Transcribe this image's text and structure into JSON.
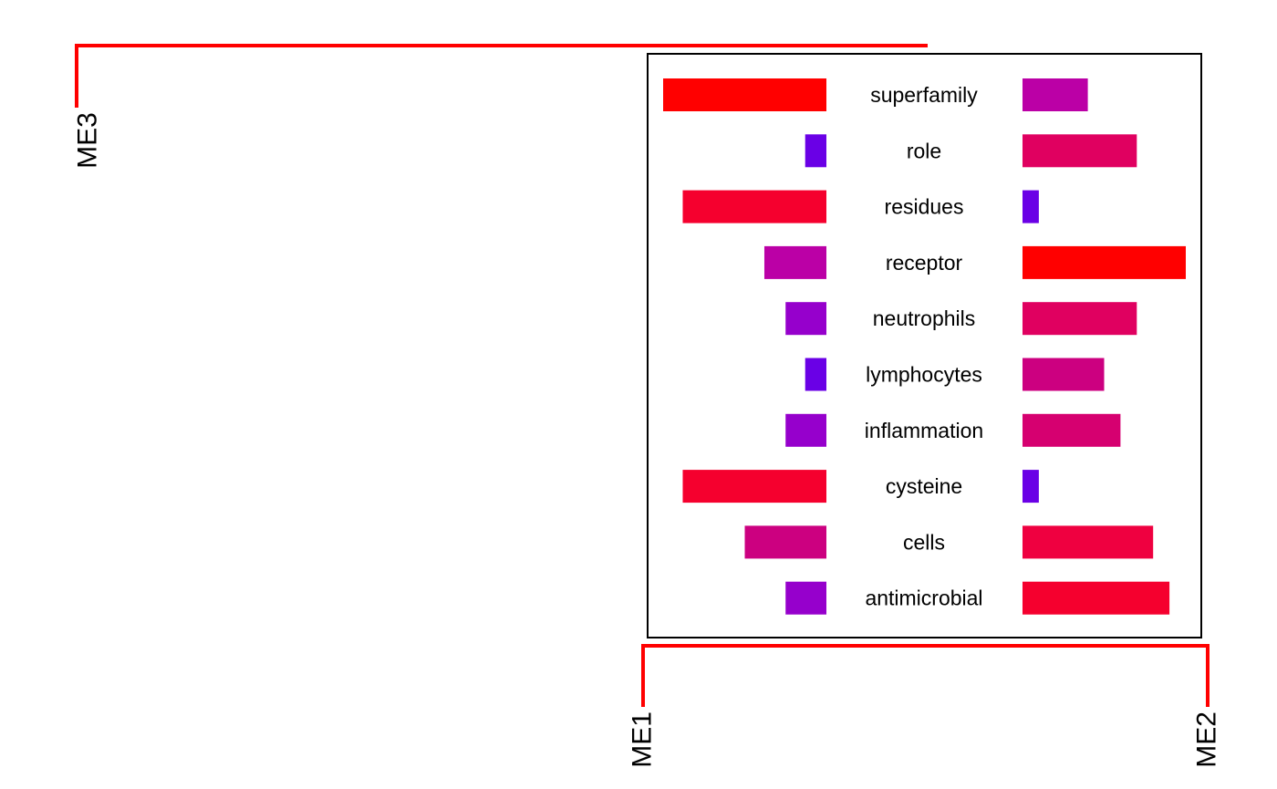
{
  "chart_data": {
    "type": "bar",
    "description_kind": "mirrored horizontal bar chart (term comparison) with dendrogram",
    "terms": [
      "superfamily",
      "role",
      "residues",
      "receptor",
      "neutrophils",
      "lymphocytes",
      "inflammation",
      "cysteine",
      "cells",
      "antimicrobial"
    ],
    "left_values": [
      1.0,
      0.13,
      0.88,
      0.38,
      0.25,
      0.13,
      0.25,
      0.88,
      0.5,
      0.25
    ],
    "right_values": [
      0.4,
      0.7,
      0.1,
      1.0,
      0.7,
      0.5,
      0.6,
      0.1,
      0.8,
      0.9
    ],
    "left_colors": [
      "#ff0000",
      "#6a00e6",
      "#f5002e",
      "#bb00a6",
      "#9600cc",
      "#6a00e6",
      "#9600cc",
      "#f5002e",
      "#cc0080",
      "#9600cc"
    ],
    "right_colors": [
      "#bb00a6",
      "#e00060",
      "#6a00e6",
      "#ff0000",
      "#e00060",
      "#cc0080",
      "#d60070",
      "#6a00e6",
      "#ef0040",
      "#f5002e"
    ],
    "dendrogram": {
      "color": "#ff0000",
      "leaf_labels": {
        "left": "ME3",
        "bottom_left": "ME1",
        "bottom_right": "ME2"
      }
    }
  }
}
